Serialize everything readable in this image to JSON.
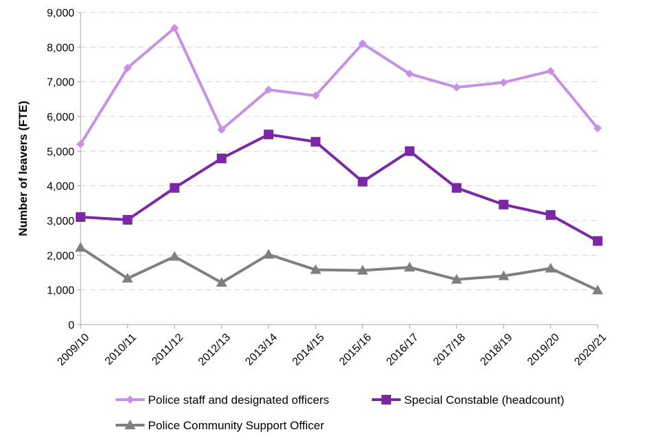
{
  "chart_data": {
    "type": "line",
    "title": "",
    "xlabel": "",
    "ylabel": "Number of leavers (FTE)",
    "ylim": [
      0,
      9000
    ],
    "ytick_step": 1000,
    "ytick_labels": [
      "0",
      "1,000",
      "2,000",
      "3,000",
      "4,000",
      "5,000",
      "6,000",
      "7,000",
      "8,000",
      "9,000"
    ],
    "grid": true,
    "legend_position": "bottom",
    "categories": [
      "2009/10",
      "2010/11",
      "2011/12",
      "2012/13",
      "2013/14",
      "2014/15",
      "2015/16",
      "2016/17",
      "2017/18",
      "2018/19",
      "2019/20",
      "2020/21"
    ],
    "series": [
      {
        "name": "Police staff and designated officers",
        "marker": "diamond",
        "color": "#c88fe6",
        "values": [
          5200,
          7400,
          8550,
          5620,
          6770,
          6600,
          8100,
          7230,
          6840,
          6980,
          7310,
          5660
        ]
      },
      {
        "name": "Special Constable (headcount)",
        "marker": "square",
        "color": "#7b27a6",
        "values": [
          3100,
          3020,
          3940,
          4790,
          5480,
          5270,
          4120,
          5000,
          3940,
          3460,
          3160,
          2410
        ]
      },
      {
        "name": "Police Community Support Officer",
        "marker": "triangle",
        "color": "#7f7f7f",
        "values": [
          2220,
          1330,
          1960,
          1210,
          2020,
          1580,
          1560,
          1650,
          1300,
          1400,
          1620,
          990
        ]
      }
    ]
  }
}
